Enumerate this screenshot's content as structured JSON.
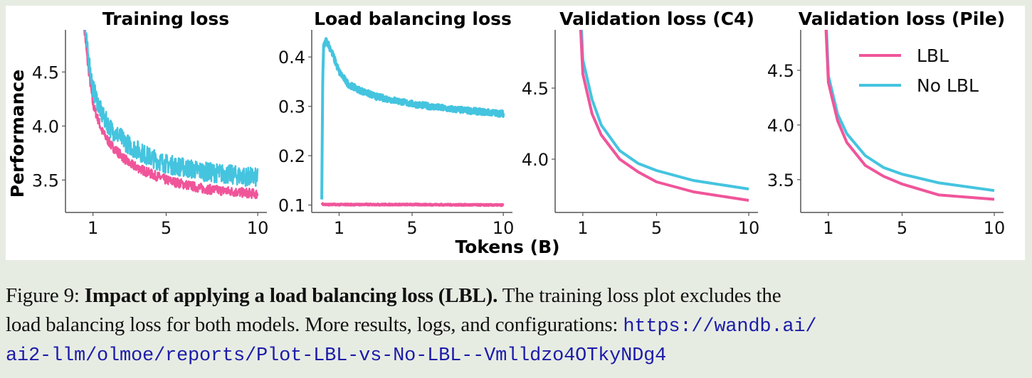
{
  "colors": {
    "LBL": "#f0559a",
    "No LBL": "#44c4df",
    "background": "#e7ece3"
  },
  "chart_data": [
    {
      "type": "line",
      "title": "Training loss",
      "ylabel": "Performance",
      "xlabel": "Tokens (B)",
      "xticks": [
        1,
        5,
        10
      ],
      "yticks": [
        3.5,
        4.0,
        4.5
      ],
      "ytick_labels": [
        "3.5",
        "4.0",
        "4.5"
      ],
      "xlim": [
        -0.5,
        10.5
      ],
      "ylim": [
        3.2,
        4.89
      ],
      "noisy": true,
      "series": [
        {
          "name": "LBL",
          "x": [
            0.5,
            0.7,
            1,
            1.5,
            2,
            3,
            4,
            5,
            7,
            10
          ],
          "y": [
            4.95,
            4.6,
            4.2,
            3.95,
            3.82,
            3.65,
            3.57,
            3.5,
            3.42,
            3.37
          ]
        },
        {
          "name": "No LBL",
          "x": [
            0.5,
            0.7,
            1,
            1.5,
            2,
            3,
            4,
            5,
            7,
            10
          ],
          "y": [
            5.0,
            4.7,
            4.35,
            4.1,
            3.97,
            3.82,
            3.72,
            3.65,
            3.58,
            3.52
          ]
        }
      ]
    },
    {
      "type": "line",
      "title": "Load balancing loss",
      "xticks": [
        1,
        5,
        10
      ],
      "yticks": [
        0.1,
        0.2,
        0.3,
        0.4
      ],
      "ytick_labels": [
        "0.1",
        "0.2",
        "0.3",
        "0.4"
      ],
      "xlim": [
        -0.5,
        10.5
      ],
      "ylim": [
        0.085,
        0.455
      ],
      "noisy": true,
      "series": [
        {
          "name": "LBL",
          "x": [
            0.05,
            0.1,
            0.3,
            1,
            5,
            10
          ],
          "y": [
            0.105,
            0.102,
            0.101,
            0.101,
            0.101,
            0.1
          ]
        },
        {
          "name": "No LBL",
          "x": [
            0.05,
            0.1,
            0.15,
            0.3,
            0.6,
            1,
            1.5,
            2,
            3,
            5,
            7,
            10
          ],
          "y": [
            0.11,
            0.35,
            0.42,
            0.435,
            0.41,
            0.37,
            0.345,
            0.335,
            0.32,
            0.305,
            0.295,
            0.285
          ]
        }
      ]
    },
    {
      "type": "line",
      "title": "Validation loss (C4)",
      "xticks": [
        1,
        5,
        10
      ],
      "yticks": [
        4.0,
        4.5
      ],
      "ytick_labels": [
        "4.0",
        "4.5"
      ],
      "xlim": [
        -0.5,
        10.5
      ],
      "ylim": [
        3.625,
        4.91
      ],
      "noisy": false,
      "series": [
        {
          "name": "LBL",
          "x": [
            0.85,
            1,
            1.5,
            2,
            3,
            4,
            5,
            7,
            10
          ],
          "y": [
            5.0,
            4.6,
            4.32,
            4.17,
            4.0,
            3.91,
            3.84,
            3.77,
            3.71
          ]
        },
        {
          "name": "No LBL",
          "x": [
            0.9,
            1,
            1.5,
            2,
            3,
            4,
            5,
            7,
            10
          ],
          "y": [
            5.0,
            4.7,
            4.42,
            4.24,
            4.06,
            3.97,
            3.92,
            3.85,
            3.79
          ]
        }
      ]
    },
    {
      "type": "line",
      "title": "Validation loss (Pile)",
      "xticks": [
        1,
        5,
        10
      ],
      "yticks": [
        3.5,
        4.0,
        4.5
      ],
      "ytick_labels": [
        "3.5",
        "4.0",
        "4.5"
      ],
      "xlim": [
        -0.5,
        10.5
      ],
      "ylim": [
        3.2,
        4.87
      ],
      "noisy": false,
      "legend": {
        "position": "top-right",
        "entries": [
          "LBL",
          "No LBL"
        ]
      },
      "series": [
        {
          "name": "LBL",
          "x": [
            0.85,
            1,
            1.5,
            2,
            3,
            4,
            5,
            7,
            10
          ],
          "y": [
            4.95,
            4.39,
            4.04,
            3.84,
            3.63,
            3.53,
            3.46,
            3.36,
            3.32
          ]
        },
        {
          "name": "No LBL",
          "x": [
            0.88,
            1,
            1.5,
            2,
            3,
            4,
            5,
            7,
            10
          ],
          "y": [
            4.95,
            4.45,
            4.1,
            3.92,
            3.72,
            3.61,
            3.55,
            3.47,
            3.4
          ]
        }
      ]
    }
  ],
  "caption": {
    "label": "Figure 9:",
    "bold": "Impact of applying a load balancing loss (LBL).",
    "line1_rest": "The training loss plot excludes the",
    "line2": "load balancing loss for both models. More results, logs, and configurations:",
    "link_part1": "https://wandb.ai/",
    "link_part2": "ai2-llm/olmoe/reports/Plot-LBL-vs-No-LBL--Vmlldzo4OTkyNDg4"
  }
}
